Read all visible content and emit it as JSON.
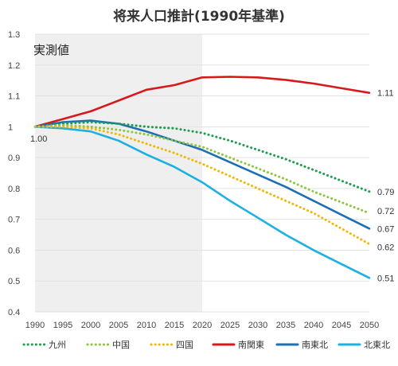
{
  "chart_data": {
    "type": "line",
    "title": "将来人口推計(1990年基準)",
    "actual_label": "実測値",
    "x": [
      1990,
      1995,
      2000,
      2005,
      2010,
      2015,
      2020,
      2025,
      2030,
      2035,
      2040,
      2045,
      2050
    ],
    "actual_range": [
      1990,
      2020
    ],
    "ylim": [
      0.4,
      1.3
    ],
    "yticks": [
      "0.4",
      "0.5",
      "0.6",
      "0.7",
      "0.8",
      "0.9",
      "1",
      "1.1",
      "1.2",
      "1.3"
    ],
    "ytick_values": [
      0.4,
      0.5,
      0.6,
      0.7,
      0.8,
      0.9,
      1.0,
      1.1,
      1.2,
      1.3
    ],
    "start_label": "1.00",
    "legend_position": "bottom",
    "series": [
      {
        "name": "九州",
        "color": "#1a9e4a",
        "style": "dotted",
        "values": [
          1.0,
          1.01,
          1.015,
          1.01,
          1.0,
          0.995,
          0.98,
          0.955,
          0.925,
          0.895,
          0.86,
          0.825,
          0.79
        ],
        "end_label": "0.79"
      },
      {
        "name": "中国",
        "color": "#8cc63f",
        "style": "dotted",
        "values": [
          1.0,
          1.005,
          1.0,
          0.99,
          0.975,
          0.955,
          0.935,
          0.9,
          0.865,
          0.83,
          0.79,
          0.755,
          0.72
        ],
        "end_label": "0.72"
      },
      {
        "name": "四国",
        "color": "#f2b705",
        "style": "dotted",
        "values": [
          1.0,
          1.0,
          0.995,
          0.975,
          0.945,
          0.915,
          0.88,
          0.84,
          0.8,
          0.76,
          0.72,
          0.67,
          0.62
        ],
        "end_label": "0.62"
      },
      {
        "name": "南関東",
        "color": "#d7191c",
        "style": "solid",
        "values": [
          1.0,
          1.025,
          1.05,
          1.085,
          1.12,
          1.135,
          1.16,
          1.162,
          1.16,
          1.152,
          1.14,
          1.125,
          1.11
        ],
        "end_label": "1.11"
      },
      {
        "name": "南東北",
        "color": "#1f6fb2",
        "style": "solid",
        "values": [
          1.0,
          1.015,
          1.02,
          1.01,
          0.985,
          0.955,
          0.925,
          0.885,
          0.845,
          0.805,
          0.76,
          0.715,
          0.67
        ],
        "end_label": "0.67"
      },
      {
        "name": "北東北",
        "color": "#1cb0e3",
        "style": "solid",
        "values": [
          1.0,
          0.995,
          0.985,
          0.955,
          0.91,
          0.87,
          0.82,
          0.76,
          0.705,
          0.65,
          0.6,
          0.555,
          0.51
        ],
        "end_label": "0.51"
      }
    ]
  }
}
